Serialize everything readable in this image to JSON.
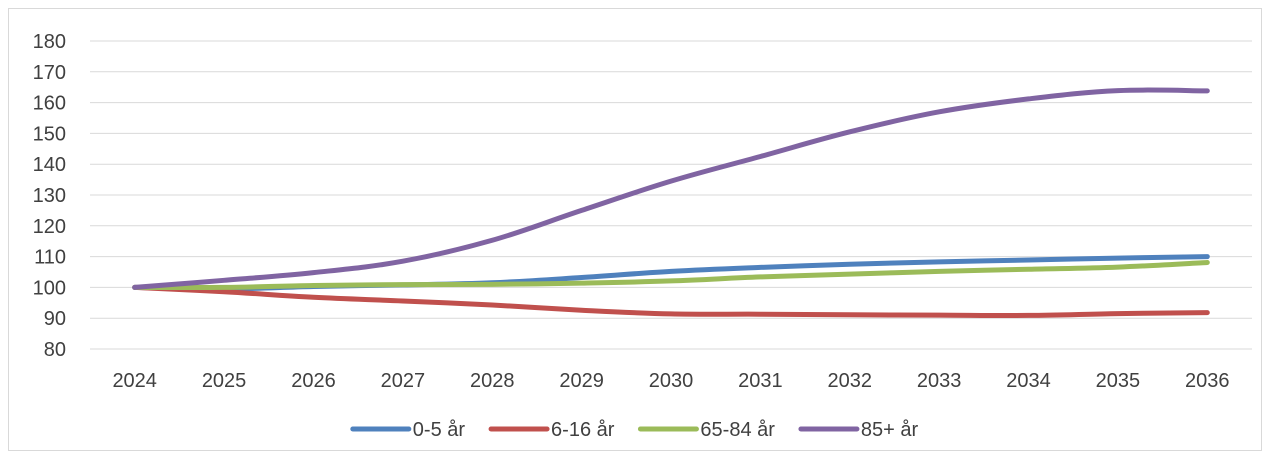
{
  "chart_data": {
    "type": "line",
    "title": "",
    "xlabel": "",
    "ylabel": "",
    "categories": [
      "2024",
      "2025",
      "2026",
      "2027",
      "2028",
      "2029",
      "2030",
      "2031",
      "2032",
      "2033",
      "2034",
      "2035",
      "2036"
    ],
    "y_ticks": [
      "80",
      "90",
      "100",
      "110",
      "120",
      "130",
      "140",
      "150",
      "160",
      "170",
      "180"
    ],
    "ylim": [
      80,
      180
    ],
    "grid": true,
    "legend_position": "bottom",
    "series": [
      {
        "name": "0-5 år",
        "color": "#4f81bd",
        "values": [
          100,
          99.5,
          100.3,
          100.8,
          101.5,
          103.2,
          105.2,
          106.5,
          107.5,
          108.3,
          108.9,
          109.5,
          110.0
        ]
      },
      {
        "name": "6-16 år",
        "color": "#c0504d",
        "values": [
          100,
          98.6,
          96.8,
          95.6,
          94.3,
          92.6,
          91.4,
          91.3,
          91.1,
          91.0,
          90.9,
          91.5,
          91.8
        ]
      },
      {
        "name": "65-84 år",
        "color": "#9bbb59",
        "values": [
          100,
          100.0,
          100.6,
          100.9,
          101.0,
          101.4,
          102.1,
          103.4,
          104.3,
          105.2,
          105.9,
          106.6,
          108.1
        ]
      },
      {
        "name": "85+ år",
        "color": "#8064a2",
        "values": [
          100,
          102.3,
          104.8,
          108.5,
          115.3,
          125.0,
          134.5,
          142.5,
          150.5,
          157.0,
          161.2,
          163.9,
          163.8
        ]
      }
    ]
  }
}
